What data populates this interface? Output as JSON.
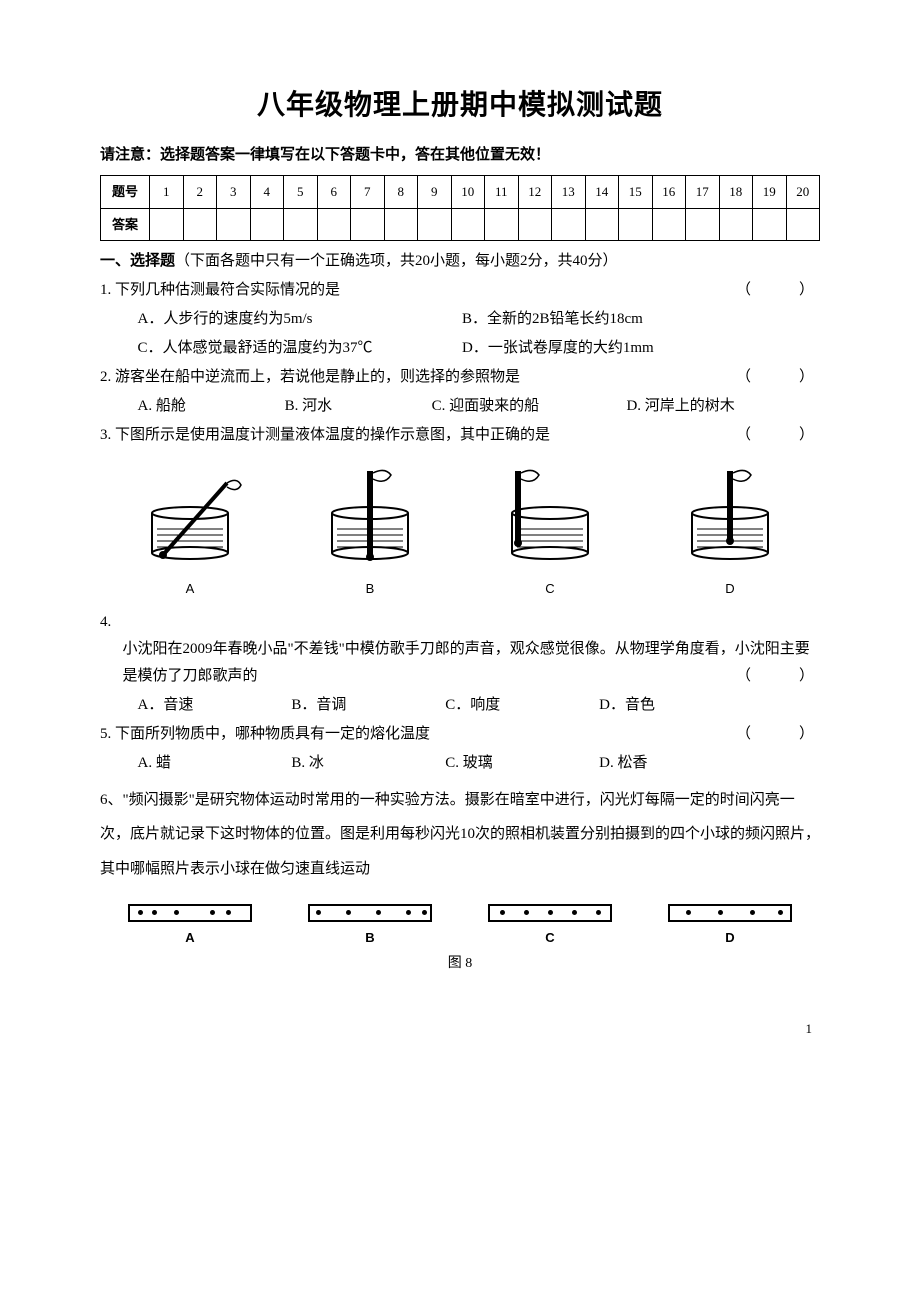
{
  "title": "八年级物理上册期中模拟测试题",
  "notice": "请注意：选择题答案一律填写在以下答题卡中，答在其他位置无效！",
  "grid": {
    "row1_label": "题号",
    "row2_label": "答案",
    "nums": [
      "1",
      "2",
      "3",
      "4",
      "5",
      "6",
      "7",
      "8",
      "9",
      "10",
      "11",
      "12",
      "13",
      "14",
      "15",
      "16",
      "17",
      "18",
      "19",
      "20"
    ]
  },
  "section1": {
    "head_bold": "一、选择题",
    "head_rest": "（下面各题中只有一个正确选项，共20小题，每小题2分，共40分）"
  },
  "q1": {
    "stem": "1. 下列几种估测最符合实际情况的是",
    "paren": "（　　）",
    "a": "A．人步行的速度约为5m/s",
    "b": "B．全新的2B铅笔长约18cm",
    "c": "C．人体感觉最舒适的温度约为37℃",
    "d": "D．一张试卷厚度的大约1mm"
  },
  "q2": {
    "stem": "2. 游客坐在船中逆流而上，若说他是静止的，则选择的参照物是",
    "paren": "（　　）",
    "a": "A. 船舱",
    "b": "B. 河水",
    "c": "C. 迎面驶来的船",
    "d": "D. 河岸上的树木"
  },
  "q3": {
    "stem": "3. 下图所示是使用温度计测量液体温度的操作示意图，其中正确的是",
    "paren": "（　　）",
    "labels": {
      "a": "A",
      "b": "B",
      "c": "C",
      "d": "D"
    }
  },
  "q4": {
    "num": "4.",
    "stem": "小沈阳在2009年春晚小品\"不差钱\"中模仿歌手刀郎的声音，观众感觉很像。从物理学角度看，小沈阳主要是模仿了刀郎歌声的",
    "paren": "（　　）",
    "a": "A．音速",
    "b": "B．音调",
    "c": "C．响度",
    "d": "D．音色"
  },
  "q5": {
    "stem": "5. 下面所列物质中，哪种物质具有一定的熔化温度",
    "paren": "（　　）",
    "a": "A. 蜡",
    "b": "B. 冰",
    "c": "C. 玻璃",
    "d": "D. 松香"
  },
  "q6": {
    "text": "6、\"频闪摄影\"是研究物体运动时常用的一种实验方法。摄影在暗室中进行，闪光灯每隔一定的时间闪亮一次，底片就记录下这时物体的位置。图是利用每秒闪光10次的照相机装置分别拍摄到的四个小球的频闪照片，其中哪幅照片表示小球在做匀速直线运动",
    "labels": {
      "a": "A",
      "b": "B",
      "c": "C",
      "d": "D"
    },
    "caption": "图 8",
    "dots": {
      "A": [
        8,
        22,
        44,
        80,
        96
      ],
      "B": [
        6,
        36,
        66,
        96,
        112
      ],
      "C": [
        10,
        34,
        58,
        82,
        106
      ],
      "D": [
        16,
        48,
        80,
        108
      ]
    }
  },
  "page_num": "1",
  "colors": {
    "text": "#000000",
    "bg": "#ffffff",
    "border": "#000000"
  }
}
